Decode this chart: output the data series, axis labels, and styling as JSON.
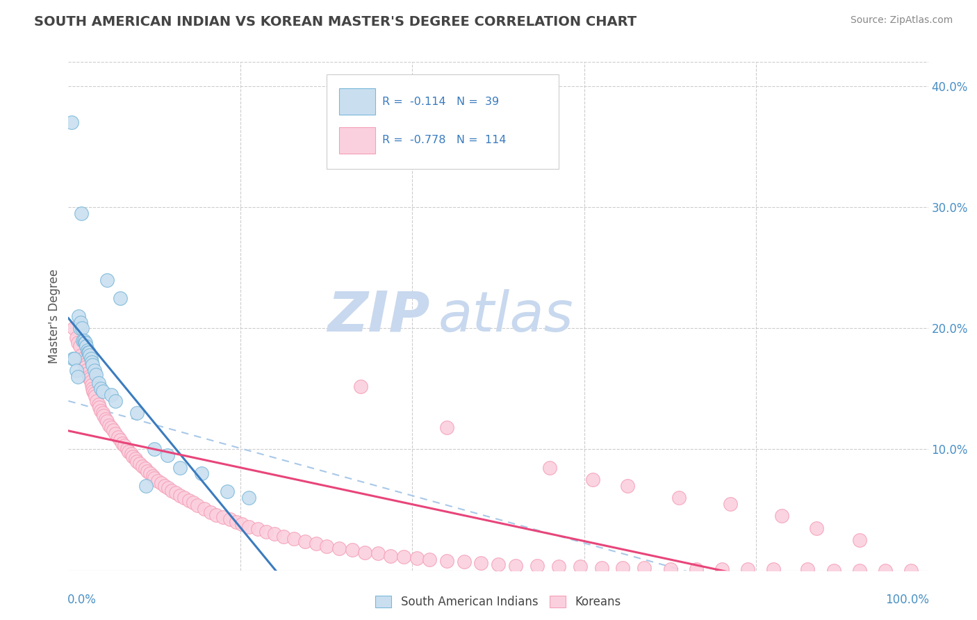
{
  "title": "SOUTH AMERICAN INDIAN VS KOREAN MASTER'S DEGREE CORRELATION CHART",
  "source": "Source: ZipAtlas.com",
  "ylabel": "Master's Degree",
  "blue_color": "#7ab8d9",
  "blue_fill": "#c9dff0",
  "pink_color": "#f4a0b8",
  "pink_fill": "#fbd0de",
  "blue_line_color": "#3a7bbf",
  "pink_line_color": "#e8457a",
  "dashed_line_color": "#a8c8e8",
  "watermark_zip_color": "#c8d8ee",
  "watermark_atlas_color": "#c8d8ee",
  "xlim": [
    0.0,
    1.0
  ],
  "ylim": [
    0.0,
    0.42
  ],
  "blue_x": [
    0.004,
    0.005,
    0.007,
    0.009,
    0.011,
    0.012,
    0.013,
    0.014,
    0.015,
    0.016,
    0.017,
    0.018,
    0.019,
    0.02,
    0.021,
    0.022,
    0.023,
    0.024,
    0.025,
    0.026,
    0.027,
    0.028,
    0.03,
    0.032,
    0.035,
    0.038,
    0.04,
    0.045,
    0.05,
    0.055,
    0.06,
    0.08,
    0.09,
    0.1,
    0.115,
    0.13,
    0.155,
    0.185,
    0.21
  ],
  "blue_y": [
    0.37,
    0.175,
    0.175,
    0.165,
    0.16,
    0.21,
    0.2,
    0.205,
    0.295,
    0.2,
    0.19,
    0.19,
    0.188,
    0.188,
    0.185,
    0.182,
    0.18,
    0.18,
    0.178,
    0.175,
    0.172,
    0.17,
    0.165,
    0.162,
    0.155,
    0.15,
    0.148,
    0.24,
    0.145,
    0.14,
    0.225,
    0.13,
    0.07,
    0.1,
    0.095,
    0.085,
    0.08,
    0.065,
    0.06
  ],
  "pink_x": [
    0.006,
    0.009,
    0.011,
    0.013,
    0.015,
    0.017,
    0.018,
    0.019,
    0.02,
    0.021,
    0.022,
    0.024,
    0.025,
    0.026,
    0.027,
    0.028,
    0.029,
    0.03,
    0.031,
    0.033,
    0.035,
    0.036,
    0.038,
    0.04,
    0.041,
    0.043,
    0.045,
    0.047,
    0.05,
    0.052,
    0.055,
    0.058,
    0.06,
    0.063,
    0.065,
    0.068,
    0.07,
    0.073,
    0.075,
    0.078,
    0.08,
    0.083,
    0.086,
    0.089,
    0.092,
    0.095,
    0.098,
    0.1,
    0.104,
    0.108,
    0.112,
    0.116,
    0.12,
    0.125,
    0.13,
    0.135,
    0.14,
    0.145,
    0.15,
    0.158,
    0.165,
    0.172,
    0.18,
    0.188,
    0.195,
    0.202,
    0.21,
    0.22,
    0.23,
    0.24,
    0.25,
    0.262,
    0.275,
    0.288,
    0.3,
    0.315,
    0.33,
    0.345,
    0.36,
    0.375,
    0.39,
    0.405,
    0.42,
    0.44,
    0.46,
    0.48,
    0.5,
    0.52,
    0.545,
    0.57,
    0.595,
    0.62,
    0.645,
    0.67,
    0.7,
    0.73,
    0.76,
    0.79,
    0.82,
    0.86,
    0.89,
    0.92,
    0.95,
    0.98,
    0.34,
    0.44,
    0.56,
    0.61,
    0.65,
    0.71,
    0.77,
    0.83,
    0.87,
    0.92
  ],
  "pink_y": [
    0.2,
    0.192,
    0.188,
    0.185,
    0.178,
    0.175,
    0.172,
    0.17,
    0.168,
    0.165,
    0.163,
    0.16,
    0.158,
    0.156,
    0.153,
    0.15,
    0.148,
    0.146,
    0.144,
    0.14,
    0.137,
    0.135,
    0.132,
    0.13,
    0.128,
    0.125,
    0.123,
    0.12,
    0.118,
    0.116,
    0.113,
    0.11,
    0.108,
    0.105,
    0.103,
    0.1,
    0.098,
    0.096,
    0.094,
    0.092,
    0.09,
    0.088,
    0.086,
    0.084,
    0.082,
    0.08,
    0.078,
    0.076,
    0.074,
    0.072,
    0.07,
    0.068,
    0.066,
    0.064,
    0.062,
    0.06,
    0.058,
    0.056,
    0.054,
    0.051,
    0.048,
    0.046,
    0.044,
    0.042,
    0.04,
    0.038,
    0.036,
    0.034,
    0.032,
    0.03,
    0.028,
    0.026,
    0.024,
    0.022,
    0.02,
    0.018,
    0.017,
    0.015,
    0.014,
    0.012,
    0.011,
    0.01,
    0.009,
    0.008,
    0.007,
    0.006,
    0.005,
    0.004,
    0.004,
    0.003,
    0.003,
    0.002,
    0.002,
    0.002,
    0.001,
    0.001,
    0.001,
    0.001,
    0.001,
    0.001,
    0.0,
    0.0,
    0.0,
    0.0,
    0.152,
    0.118,
    0.085,
    0.075,
    0.07,
    0.06,
    0.055,
    0.045,
    0.035,
    0.025
  ]
}
